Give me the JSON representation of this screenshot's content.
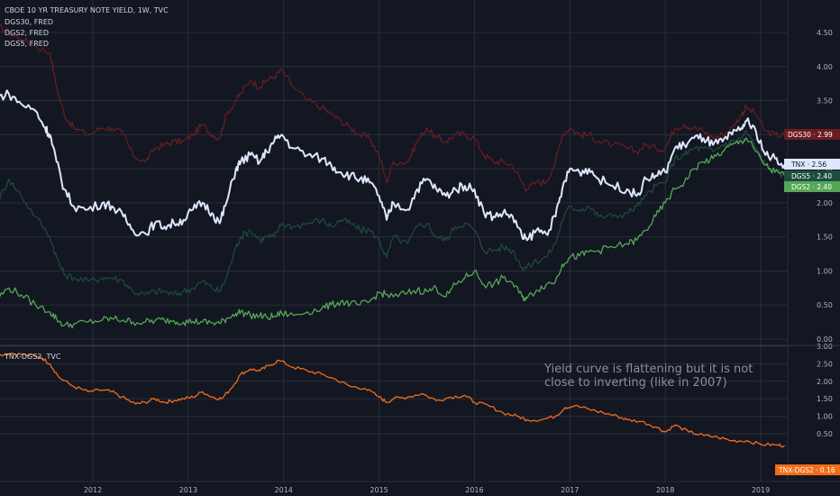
{
  "colors": {
    "background": "#131722",
    "grid": "#2a2e39",
    "separator": "#363a45",
    "axis_text": "#b2b5be",
    "tnx": "#dfe7ff",
    "dgs30": "#6b1d21",
    "dgs5": "#1d4d3f",
    "dgs2": "#56a658",
    "spread": "#f36c19",
    "note": "#8a8f9c"
  },
  "legend": {
    "main_title": "CBOE 10 YR TREASURY NOTE YIELD, 1W, TVC",
    "series_dgs30": "DGS30, FRED",
    "series_dgs2": "DGS2, FRED",
    "series_dgs5": "DGS5, FRED",
    "lower_title": "TNX-DGS2, TVC"
  },
  "annotation": {
    "line1": "Yield curve is flattening but it is not",
    "line2": "close to inverting (like in 2007)"
  },
  "badges": {
    "dgs30": "DGS30 · 2.99",
    "tnx": "TNX · 2.56",
    "dgs5": "DGS5 · 2.40",
    "dgs2": "DGS2 · 2.40",
    "spread": "TNX-DGS2 · 0.16"
  },
  "chart_data": [
    {
      "type": "line",
      "pane": "main",
      "yticks": [
        "0.00",
        "0.50",
        "1.00",
        "1.50",
        "2.00",
        "2.50",
        "3.00",
        "3.50",
        "4.00",
        "4.50"
      ],
      "ylim": [
        0,
        4.6
      ],
      "xlim": [
        2011.0,
        2019.35
      ],
      "series": [
        {
          "name": "TNX",
          "x": [
            2011.0,
            2011.12,
            2011.25,
            2011.4,
            2011.5,
            2011.55,
            2011.62,
            2011.7,
            2011.8,
            2011.95,
            2012.1,
            2012.2,
            2012.32,
            2012.42,
            2012.55,
            2012.65,
            2012.75,
            2012.85,
            2012.95,
            2013.05,
            2013.15,
            2013.25,
            2013.33,
            2013.4,
            2013.5,
            2013.55,
            2013.65,
            2013.75,
            2013.82,
            2013.9,
            2013.98,
            2014.1,
            2014.25,
            2014.4,
            2014.5,
            2014.6,
            2014.7,
            2014.8,
            2014.9,
            2015.0,
            2015.08,
            2015.15,
            2015.3,
            2015.4,
            2015.5,
            2015.6,
            2015.7,
            2015.8,
            2015.9,
            2016.0,
            2016.1,
            2016.2,
            2016.3,
            2016.4,
            2016.5,
            2016.55,
            2016.65,
            2016.75,
            2016.85,
            2016.92,
            2017.0,
            2017.1,
            2017.2,
            2017.3,
            2017.45,
            2017.6,
            2017.7,
            2017.8,
            2017.9,
            2018.0,
            2018.1,
            2018.2,
            2018.3,
            2018.4,
            2018.5,
            2018.6,
            2018.7,
            2018.8,
            2018.85,
            2018.95,
            2019.05,
            2019.15,
            2019.25
          ],
          "y": [
            3.55,
            3.6,
            3.45,
            3.35,
            3.1,
            3.0,
            2.6,
            2.2,
            1.95,
            1.9,
            2.0,
            1.95,
            1.8,
            1.6,
            1.55,
            1.7,
            1.65,
            1.7,
            1.75,
            1.9,
            2.0,
            1.85,
            1.7,
            2.0,
            2.5,
            2.6,
            2.7,
            2.6,
            2.75,
            2.9,
            3.0,
            2.8,
            2.7,
            2.65,
            2.55,
            2.45,
            2.4,
            2.35,
            2.3,
            2.1,
            1.75,
            2.0,
            1.9,
            2.2,
            2.35,
            2.2,
            2.1,
            2.2,
            2.25,
            2.2,
            1.85,
            1.8,
            1.85,
            1.8,
            1.5,
            1.45,
            1.6,
            1.55,
            1.8,
            2.2,
            2.5,
            2.45,
            2.5,
            2.35,
            2.25,
            2.2,
            2.1,
            2.35,
            2.4,
            2.45,
            2.8,
            2.85,
            2.95,
            2.95,
            2.85,
            2.9,
            3.0,
            3.1,
            3.2,
            3.05,
            2.7,
            2.65,
            2.56
          ]
        },
        {
          "name": "DGS30",
          "x": [
            2011.0,
            2011.12,
            2011.25,
            2011.4,
            2011.55,
            2011.62,
            2011.7,
            2011.8,
            2011.95,
            2012.1,
            2012.2,
            2012.32,
            2012.42,
            2012.55,
            2012.65,
            2012.75,
            2012.85,
            2012.95,
            2013.05,
            2013.15,
            2013.25,
            2013.33,
            2013.4,
            2013.5,
            2013.55,
            2013.65,
            2013.75,
            2013.82,
            2013.9,
            2013.98,
            2014.1,
            2014.25,
            2014.4,
            2014.5,
            2014.6,
            2014.7,
            2014.8,
            2014.9,
            2015.0,
            2015.08,
            2015.15,
            2015.3,
            2015.4,
            2015.5,
            2015.6,
            2015.7,
            2015.8,
            2015.9,
            2016.0,
            2016.1,
            2016.2,
            2016.3,
            2016.4,
            2016.5,
            2016.55,
            2016.65,
            2016.75,
            2016.85,
            2016.92,
            2017.0,
            2017.1,
            2017.2,
            2017.3,
            2017.45,
            2017.6,
            2017.7,
            2017.8,
            2017.9,
            2018.0,
            2018.1,
            2018.2,
            2018.3,
            2018.4,
            2018.5,
            2018.6,
            2018.7,
            2018.8,
            2018.85,
            2018.95,
            2019.05,
            2019.15,
            2019.25
          ],
          "y": [
            4.6,
            4.5,
            4.4,
            4.3,
            4.2,
            3.7,
            3.3,
            3.1,
            3.0,
            3.1,
            3.1,
            3.0,
            2.7,
            2.6,
            2.8,
            2.85,
            2.9,
            2.9,
            3.0,
            3.15,
            3.0,
            2.95,
            3.3,
            3.5,
            3.6,
            3.8,
            3.7,
            3.8,
            3.85,
            3.95,
            3.7,
            3.5,
            3.4,
            3.3,
            3.2,
            3.1,
            3.0,
            2.95,
            2.7,
            2.3,
            2.6,
            2.6,
            2.9,
            3.1,
            2.95,
            2.9,
            3.0,
            3.0,
            2.95,
            2.7,
            2.6,
            2.6,
            2.55,
            2.3,
            2.2,
            2.3,
            2.3,
            2.6,
            3.0,
            3.1,
            3.0,
            3.0,
            2.9,
            2.85,
            2.8,
            2.75,
            2.85,
            2.8,
            2.8,
            3.1,
            3.15,
            3.1,
            3.05,
            2.95,
            3.0,
            3.1,
            3.3,
            3.4,
            3.3,
            3.05,
            3.0,
            2.99
          ]
        },
        {
          "name": "DGS5",
          "x": [
            2011.0,
            2011.12,
            2011.25,
            2011.4,
            2011.55,
            2011.62,
            2011.7,
            2011.8,
            2011.95,
            2012.1,
            2012.2,
            2012.32,
            2012.42,
            2012.55,
            2012.65,
            2012.75,
            2012.85,
            2012.95,
            2013.05,
            2013.15,
            2013.25,
            2013.33,
            2013.4,
            2013.5,
            2013.55,
            2013.65,
            2013.75,
            2013.82,
            2013.9,
            2013.98,
            2014.1,
            2014.25,
            2014.4,
            2014.5,
            2014.6,
            2014.7,
            2014.8,
            2014.9,
            2015.0,
            2015.08,
            2015.15,
            2015.3,
            2015.4,
            2015.5,
            2015.6,
            2015.7,
            2015.8,
            2015.9,
            2016.0,
            2016.1,
            2016.2,
            2016.3,
            2016.4,
            2016.5,
            2016.55,
            2016.65,
            2016.75,
            2016.85,
            2016.92,
            2017.0,
            2017.1,
            2017.2,
            2017.3,
            2017.45,
            2017.6,
            2017.7,
            2017.8,
            2017.9,
            2018.0,
            2018.1,
            2018.2,
            2018.3,
            2018.4,
            2018.5,
            2018.6,
            2018.7,
            2018.8,
            2018.85,
            2018.95,
            2019.05,
            2019.15,
            2019.25
          ],
          "y": [
            2.0,
            2.35,
            2.1,
            1.8,
            1.5,
            1.2,
            0.95,
            0.9,
            0.85,
            0.9,
            0.9,
            0.85,
            0.7,
            0.65,
            0.7,
            0.7,
            0.65,
            0.7,
            0.75,
            0.85,
            0.75,
            0.7,
            0.9,
            1.35,
            1.5,
            1.6,
            1.45,
            1.5,
            1.5,
            1.7,
            1.65,
            1.7,
            1.75,
            1.65,
            1.75,
            1.7,
            1.6,
            1.6,
            1.45,
            1.2,
            1.5,
            1.4,
            1.65,
            1.7,
            1.5,
            1.45,
            1.65,
            1.7,
            1.6,
            1.3,
            1.3,
            1.35,
            1.3,
            1.05,
            1.05,
            1.15,
            1.2,
            1.4,
            1.75,
            1.95,
            1.9,
            1.95,
            1.8,
            1.8,
            1.85,
            1.95,
            2.1,
            2.25,
            2.3,
            2.65,
            2.7,
            2.8,
            2.8,
            2.75,
            2.85,
            2.9,
            2.95,
            3.05,
            2.8,
            2.55,
            2.45,
            2.4
          ]
        },
        {
          "name": "DGS2",
          "x": [
            2011.0,
            2011.12,
            2011.25,
            2011.4,
            2011.55,
            2011.62,
            2011.7,
            2011.8,
            2011.95,
            2012.1,
            2012.2,
            2012.32,
            2012.42,
            2012.55,
            2012.65,
            2012.75,
            2012.85,
            2012.95,
            2013.05,
            2013.15,
            2013.25,
            2013.33,
            2013.4,
            2013.5,
            2013.55,
            2013.65,
            2013.75,
            2013.82,
            2013.9,
            2013.98,
            2014.1,
            2014.25,
            2014.4,
            2014.5,
            2014.6,
            2014.7,
            2014.8,
            2014.9,
            2015.0,
            2015.08,
            2015.15,
            2015.3,
            2015.4,
            2015.5,
            2015.6,
            2015.7,
            2015.8,
            2015.9,
            2016.0,
            2016.1,
            2016.2,
            2016.3,
            2016.4,
            2016.5,
            2016.55,
            2016.65,
            2016.75,
            2016.85,
            2016.92,
            2017.0,
            2017.1,
            2017.2,
            2017.3,
            2017.45,
            2017.6,
            2017.7,
            2017.8,
            2017.9,
            2018.0,
            2018.1,
            2018.2,
            2018.3,
            2018.4,
            2018.5,
            2018.6,
            2018.7,
            2018.8,
            2018.85,
            2018.95,
            2019.05,
            2019.15,
            2019.25
          ],
          "y": [
            0.6,
            0.75,
            0.65,
            0.5,
            0.4,
            0.3,
            0.2,
            0.22,
            0.25,
            0.28,
            0.3,
            0.28,
            0.25,
            0.25,
            0.27,
            0.28,
            0.27,
            0.25,
            0.26,
            0.25,
            0.24,
            0.23,
            0.3,
            0.38,
            0.4,
            0.35,
            0.34,
            0.32,
            0.33,
            0.38,
            0.35,
            0.4,
            0.45,
            0.5,
            0.55,
            0.52,
            0.5,
            0.55,
            0.68,
            0.65,
            0.62,
            0.68,
            0.72,
            0.7,
            0.75,
            0.62,
            0.8,
            0.9,
            1.0,
            0.8,
            0.8,
            0.9,
            0.82,
            0.62,
            0.6,
            0.72,
            0.8,
            0.85,
            1.1,
            1.2,
            1.22,
            1.28,
            1.3,
            1.35,
            1.4,
            1.45,
            1.6,
            1.8,
            2.0,
            2.2,
            2.3,
            2.5,
            2.6,
            2.65,
            2.75,
            2.85,
            2.9,
            2.95,
            2.75,
            2.55,
            2.45,
            2.4
          ]
        }
      ]
    },
    {
      "type": "line",
      "pane": "lower",
      "yticks": [
        "0.50",
        "1.00",
        "1.50",
        "2.00",
        "2.50",
        "3.00"
      ],
      "ylim": [
        0.1,
        3.0
      ],
      "xlim": [
        2011.0,
        2019.35
      ],
      "xticks": [
        "2012",
        "2013",
        "2014",
        "2015",
        "2016",
        "2017",
        "2018",
        "2019"
      ],
      "series": [
        {
          "name": "TNX-DGS2",
          "x": [
            2011.0,
            2011.15,
            2011.3,
            2011.45,
            2011.55,
            2011.65,
            2011.8,
            2011.95,
            2012.1,
            2012.2,
            2012.3,
            2012.45,
            2012.55,
            2012.65,
            2012.75,
            2012.85,
            2012.95,
            2013.05,
            2013.15,
            2013.25,
            2013.35,
            2013.45,
            2013.55,
            2013.65,
            2013.75,
            2013.85,
            2013.95,
            2014.1,
            2014.25,
            2014.4,
            2014.55,
            2014.7,
            2014.85,
            2015.0,
            2015.08,
            2015.15,
            2015.3,
            2015.45,
            2015.6,
            2015.75,
            2015.9,
            2016.0,
            2016.15,
            2016.3,
            2016.45,
            2016.55,
            2016.7,
            2016.85,
            2016.95,
            2017.05,
            2017.2,
            2017.35,
            2017.5,
            2017.6,
            2017.75,
            2017.9,
            2018.0,
            2018.1,
            2018.25,
            2018.4,
            2018.55,
            2018.7,
            2018.85,
            2019.0,
            2019.15,
            2019.25
          ],
          "y": [
            2.75,
            2.8,
            2.75,
            2.7,
            2.5,
            2.1,
            1.85,
            1.7,
            1.75,
            1.7,
            1.55,
            1.35,
            1.4,
            1.5,
            1.4,
            1.45,
            1.5,
            1.55,
            1.7,
            1.55,
            1.5,
            1.8,
            2.2,
            2.35,
            2.3,
            2.45,
            2.6,
            2.4,
            2.3,
            2.2,
            2.05,
            1.85,
            1.8,
            1.55,
            1.4,
            1.5,
            1.55,
            1.65,
            1.45,
            1.55,
            1.6,
            1.4,
            1.3,
            1.1,
            1.0,
            0.9,
            0.9,
            1.0,
            1.25,
            1.3,
            1.2,
            1.1,
            1.0,
            0.9,
            0.85,
            0.7,
            0.55,
            0.75,
            0.55,
            0.45,
            0.4,
            0.3,
            0.3,
            0.2,
            0.18,
            0.16
          ]
        }
      ]
    }
  ]
}
